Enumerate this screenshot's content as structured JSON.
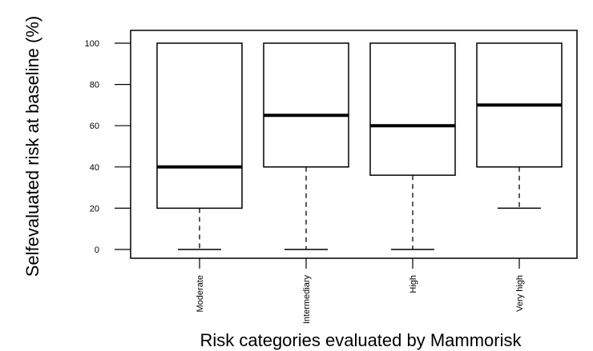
{
  "chart_data": {
    "type": "boxplot",
    "title": "",
    "xlabel": "Risk categories evaluated by Mammorisk",
    "ylabel": "Selfevaluated risk at baseline (%)",
    "ylim": [
      0,
      100
    ],
    "yticks": [
      0,
      20,
      40,
      60,
      80,
      100
    ],
    "categories": [
      "Moderate",
      "Intermediary",
      "High",
      "Very high"
    ],
    "boxes": [
      {
        "category": "Moderate",
        "whisker_low": 0,
        "q1": 20,
        "median": 40,
        "q3": 100,
        "whisker_high": 100
      },
      {
        "category": "Intermediary",
        "whisker_low": 0,
        "q1": 40,
        "median": 65,
        "q3": 100,
        "whisker_high": 100
      },
      {
        "category": "High",
        "whisker_low": 0,
        "q1": 36,
        "median": 60,
        "q3": 100,
        "whisker_high": 100
      },
      {
        "category": "Very high",
        "whisker_low": 20,
        "q1": 40,
        "median": 70,
        "q3": 100,
        "whisker_high": 100
      }
    ],
    "grid": false,
    "legend": "none"
  }
}
